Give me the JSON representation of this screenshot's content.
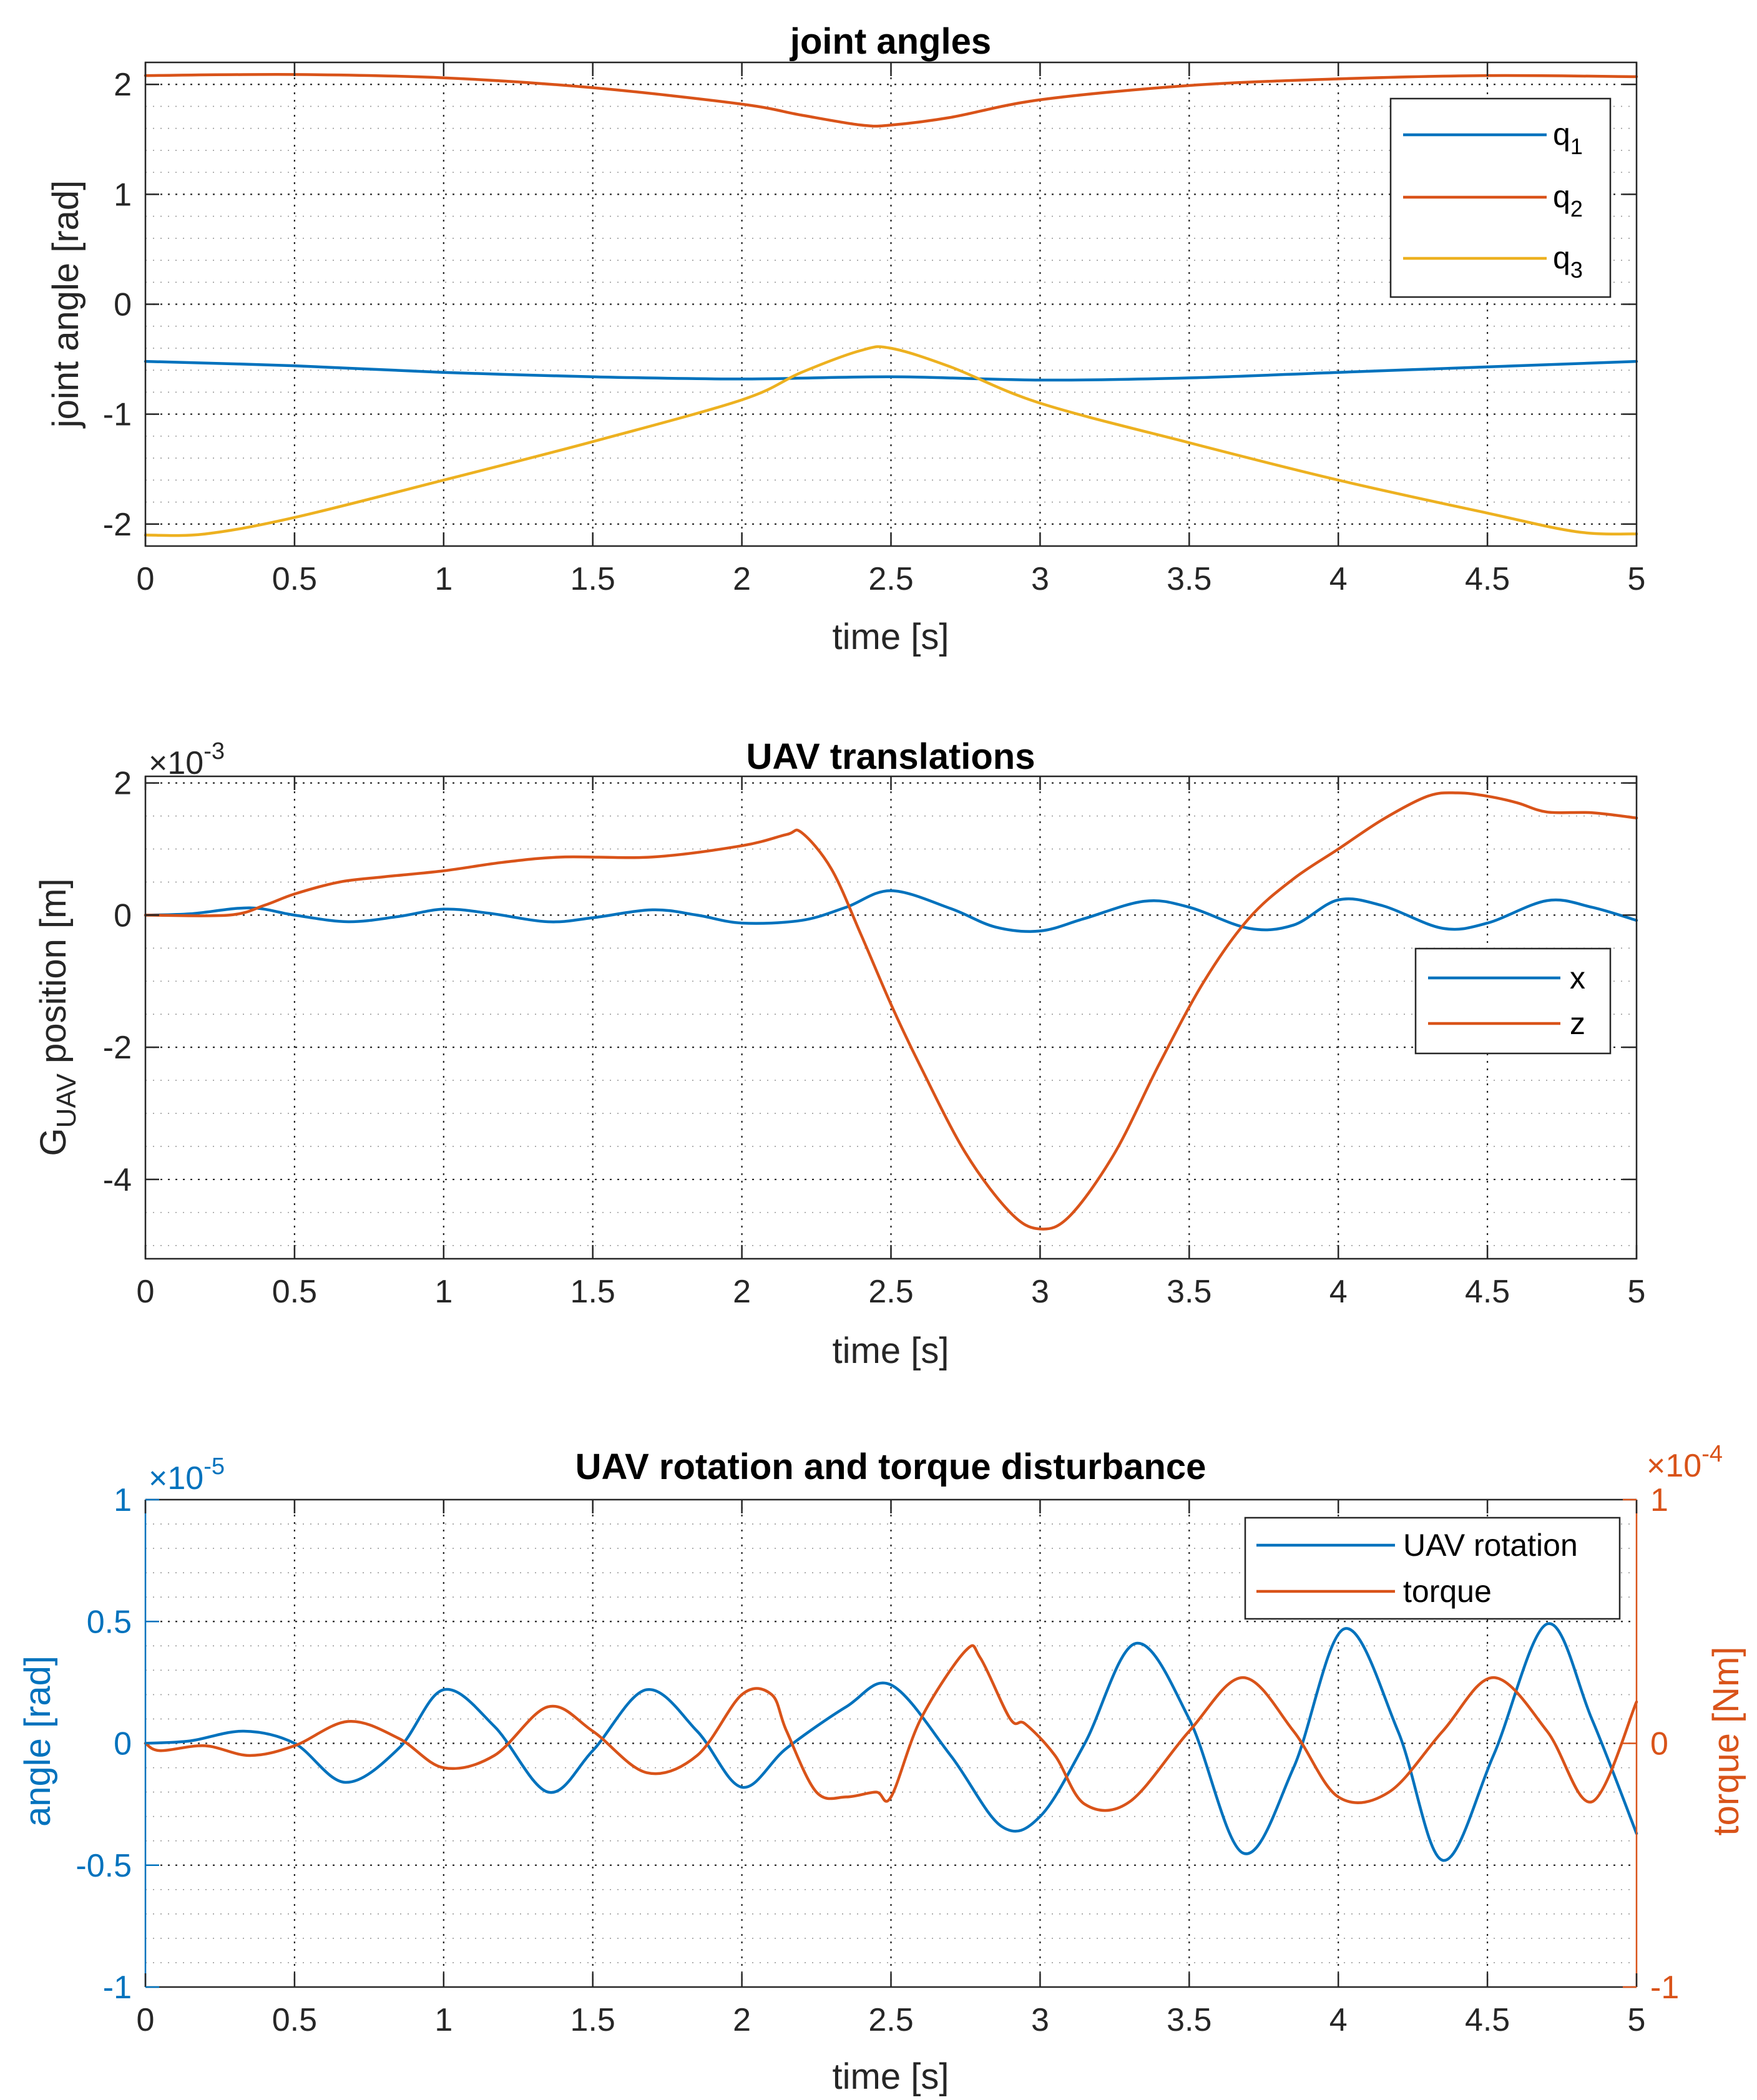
{
  "colors": {
    "blue": "#0072bd",
    "orange": "#d95319",
    "yellow": "#edb120",
    "axis": "#262626",
    "grid": "#262626"
  },
  "chart_data": [
    {
      "id": "joint-angles",
      "type": "line",
      "title": "joint angles",
      "xlabel": "time [s]",
      "ylabel": "joint angle [rad]",
      "xlim": [
        0,
        5
      ],
      "ylim": [
        -2.2,
        2.2
      ],
      "xticks": [
        0,
        0.5,
        1,
        1.5,
        2,
        2.5,
        3,
        3.5,
        4,
        4.5,
        5
      ],
      "xticklabels": [
        "0",
        "0.5",
        "1",
        "1.5",
        "2",
        "2.5",
        "3",
        "3.5",
        "4",
        "4.5",
        "5"
      ],
      "yticks": [
        -2,
        -1,
        0,
        1,
        2
      ],
      "yticklabels": [
        "-2",
        "-1",
        "0",
        "1",
        "2"
      ],
      "minor_y": [
        -1.8,
        -1.6,
        -1.4,
        -1.2,
        -0.8,
        -0.6,
        -0.4,
        -0.2,
        0.2,
        0.4,
        0.6,
        0.8,
        1.2,
        1.4,
        1.6,
        1.8
      ],
      "grid": true,
      "legend_position": "top-right",
      "series": [
        {
          "name": "q1",
          "legend_base": "q",
          "legend_sub": "1",
          "color": "#0072bd",
          "x": [
            0,
            0.5,
            1,
            1.5,
            2,
            2.5,
            3,
            3.5,
            4,
            4.5,
            5
          ],
          "y": [
            -0.52,
            -0.56,
            -0.62,
            -0.66,
            -0.68,
            -0.66,
            -0.69,
            -0.67,
            -0.62,
            -0.57,
            -0.52
          ]
        },
        {
          "name": "q2",
          "legend_base": "q",
          "legend_sub": "2",
          "color": "#d95319",
          "x": [
            0,
            0.5,
            1,
            1.5,
            2,
            2.2,
            2.4,
            2.5,
            2.7,
            3,
            3.5,
            4,
            4.5,
            5
          ],
          "y": [
            2.08,
            2.09,
            2.06,
            1.97,
            1.82,
            1.72,
            1.63,
            1.63,
            1.7,
            1.86,
            1.99,
            2.05,
            2.08,
            2.07
          ]
        },
        {
          "name": "q3",
          "legend_base": "q",
          "legend_sub": "3",
          "color": "#edb120",
          "x": [
            0,
            0.2,
            0.5,
            1,
            1.5,
            2,
            2.2,
            2.4,
            2.5,
            2.7,
            3,
            3.5,
            4,
            4.5,
            4.8,
            5
          ],
          "y": [
            -2.1,
            -2.09,
            -1.94,
            -1.6,
            -1.25,
            -0.87,
            -0.62,
            -0.42,
            -0.4,
            -0.57,
            -0.9,
            -1.26,
            -1.6,
            -1.9,
            -2.07,
            -2.09
          ]
        }
      ]
    },
    {
      "id": "uav-translations",
      "type": "line",
      "title": "UAV translations",
      "xlabel": "time [s]",
      "ylabel_base": "G",
      "ylabel_sub": "UAV",
      "ylabel_rest": " position [m]",
      "exponent_label": "×10",
      "exponent_power": "-3",
      "xlim": [
        0,
        5
      ],
      "ylim": [
        -5.2,
        2.1
      ],
      "xticks": [
        0,
        0.5,
        1,
        1.5,
        2,
        2.5,
        3,
        3.5,
        4,
        4.5,
        5
      ],
      "xticklabels": [
        "0",
        "0.5",
        "1",
        "1.5",
        "2",
        "2.5",
        "3",
        "3.5",
        "4",
        "4.5",
        "5"
      ],
      "yticks": [
        -4,
        -2,
        0,
        2
      ],
      "yticklabels": [
        "-4",
        "-2",
        "0",
        "2"
      ],
      "minor_y": [
        -5,
        -4.5,
        -3.5,
        -3,
        -2.5,
        -1.5,
        -1,
        -0.5,
        0.5,
        1,
        1.5
      ],
      "grid": true,
      "legend_position": "right",
      "series": [
        {
          "name": "x",
          "color": "#0072bd",
          "x": [
            0,
            0.15,
            0.35,
            0.5,
            0.68,
            0.85,
            1,
            1.15,
            1.35,
            1.5,
            1.7,
            1.85,
            2,
            2.2,
            2.35,
            2.5,
            2.7,
            2.85,
            3,
            3.15,
            3.35,
            3.5,
            3.7,
            3.85,
            4,
            4.15,
            4.35,
            4.5,
            4.7,
            4.85,
            5
          ],
          "y": [
            0,
            0.02,
            0.11,
            0.0,
            -0.1,
            -0.02,
            0.09,
            0.03,
            -0.1,
            -0.04,
            0.08,
            0.0,
            -0.12,
            -0.08,
            0.12,
            0.37,
            0.1,
            -0.18,
            -0.24,
            -0.05,
            0.21,
            0.12,
            -0.2,
            -0.15,
            0.23,
            0.14,
            -0.2,
            -0.12,
            0.22,
            0.12,
            -0.08
          ]
        },
        {
          "name": "z",
          "color": "#d95319",
          "x": [
            0,
            0.28,
            0.4,
            0.5,
            0.65,
            0.8,
            1,
            1.2,
            1.4,
            1.7,
            2.0,
            2.15,
            2.2,
            2.3,
            2.4,
            2.5,
            2.6,
            2.75,
            2.9,
            3.0,
            3.1,
            3.25,
            3.4,
            3.55,
            3.7,
            3.85,
            4.0,
            4.15,
            4.3,
            4.4,
            4.5,
            4.6,
            4.7,
            4.85,
            5.0
          ],
          "y": [
            0,
            0.0,
            0.15,
            0.32,
            0.5,
            0.58,
            0.67,
            0.8,
            0.88,
            0.88,
            1.05,
            1.22,
            1.25,
            0.7,
            -0.3,
            -1.35,
            -2.3,
            -3.6,
            -4.5,
            -4.75,
            -4.55,
            -3.6,
            -2.25,
            -1.0,
            -0.05,
            0.55,
            1.0,
            1.45,
            1.8,
            1.85,
            1.8,
            1.7,
            1.56,
            1.55,
            1.47
          ]
        }
      ]
    },
    {
      "id": "uav-rotation-torque",
      "type": "line",
      "title": "UAV rotation and torque disturbance",
      "xlabel": "time [s]",
      "ylabel_left": "angle [rad]",
      "ylabel_right": "torque [Nm]",
      "exponent_left_label": "×10",
      "exponent_left_power": "-5",
      "exponent_right_label": "×10",
      "exponent_right_power": "-4",
      "xlim": [
        0,
        5
      ],
      "ylim_left": [
        -1,
        1
      ],
      "ylim_right": [
        -1,
        1
      ],
      "xticks": [
        0,
        0.5,
        1,
        1.5,
        2,
        2.5,
        3,
        3.5,
        4,
        4.5,
        5
      ],
      "xticklabels": [
        "0",
        "0.5",
        "1",
        "1.5",
        "2",
        "2.5",
        "3",
        "3.5",
        "4",
        "4.5",
        "5"
      ],
      "yticks_left": [
        -1,
        -0.5,
        0,
        0.5,
        1
      ],
      "yticklabels_left": [
        "-1",
        "-0.5",
        "0",
        "0.5",
        "1"
      ],
      "yticks_right": [
        -1,
        0,
        1
      ],
      "yticklabels_right": [
        "-1",
        "0",
        "1"
      ],
      "minor_y": [
        -0.9,
        -0.8,
        -0.7,
        -0.6,
        -0.4,
        -0.3,
        -0.2,
        -0.1,
        0.1,
        0.2,
        0.3,
        0.4,
        0.6,
        0.7,
        0.8,
        0.9
      ],
      "grid": true,
      "legend_position": "top-right",
      "series": [
        {
          "name": "UAV rotation",
          "axis": "left",
          "color": "#0072bd",
          "x": [
            0,
            0.15,
            0.33,
            0.5,
            0.67,
            0.85,
            1.0,
            1.17,
            1.35,
            1.5,
            1.68,
            1.85,
            2.0,
            2.15,
            2.35,
            2.5,
            2.7,
            2.87,
            3.0,
            3.15,
            3.32,
            3.5,
            3.68,
            3.85,
            4.02,
            4.2,
            4.35,
            4.52,
            4.7,
            4.85,
            5.0
          ],
          "y": [
            0,
            0.01,
            0.05,
            0.0,
            -0.16,
            -0.02,
            0.22,
            0.07,
            -0.2,
            -0.03,
            0.22,
            0.05,
            -0.18,
            -0.02,
            0.15,
            0.24,
            -0.05,
            -0.34,
            -0.3,
            0.0,
            0.41,
            0.1,
            -0.45,
            -0.1,
            0.47,
            0.05,
            -0.48,
            -0.05,
            0.49,
            0.1,
            -0.37
          ]
        },
        {
          "name": "torque",
          "axis": "right",
          "color": "#d95319",
          "x": [
            0,
            0.05,
            0.2,
            0.35,
            0.5,
            0.68,
            0.85,
            1.0,
            1.17,
            1.35,
            1.5,
            1.68,
            1.85,
            2.0,
            2.1,
            2.15,
            2.25,
            2.35,
            2.45,
            2.5,
            2.6,
            2.75,
            2.8,
            2.9,
            2.95,
            3.05,
            3.15,
            3.3,
            3.5,
            3.68,
            3.85,
            4.0,
            4.17,
            4.35,
            4.52,
            4.7,
            4.85,
            5.0
          ],
          "y": [
            0.0,
            -0.03,
            -0.01,
            -0.05,
            -0.01,
            0.09,
            0.02,
            -0.1,
            -0.05,
            0.15,
            0.05,
            -0.12,
            -0.05,
            0.2,
            0.2,
            0.05,
            -0.2,
            -0.22,
            -0.2,
            -0.22,
            0.1,
            0.38,
            0.35,
            0.1,
            0.08,
            -0.05,
            -0.25,
            -0.24,
            0.05,
            0.27,
            0.05,
            -0.22,
            -0.2,
            0.05,
            0.27,
            0.05,
            -0.24,
            0.17
          ]
        }
      ]
    }
  ]
}
